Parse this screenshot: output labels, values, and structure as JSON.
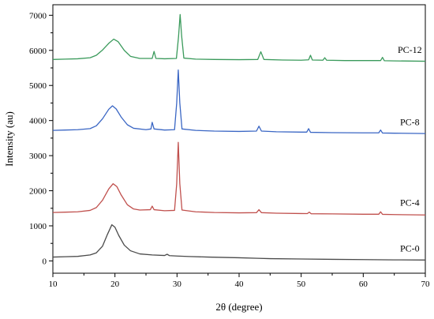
{
  "chart_data": {
    "type": "line",
    "xlabel": "2θ (degree)",
    "ylabel": "Intensity (au)",
    "xlim": [
      10,
      70
    ],
    "ylim": [
      -350,
      7300
    ],
    "xticks": [
      10,
      20,
      30,
      40,
      50,
      60,
      70
    ],
    "yticks": [
      0,
      1000,
      2000,
      3000,
      4000,
      5000,
      6000,
      7000
    ],
    "grid": false,
    "legend": "none",
    "series": [
      {
        "name": "PC-0",
        "color": "#4a4a4a",
        "points": [
          [
            10,
            110
          ],
          [
            12,
            120
          ],
          [
            14,
            130
          ],
          [
            16,
            170
          ],
          [
            17,
            230
          ],
          [
            18,
            420
          ],
          [
            18.8,
            760
          ],
          [
            19.5,
            1030
          ],
          [
            20,
            960
          ],
          [
            20.6,
            730
          ],
          [
            21.5,
            450
          ],
          [
            22.5,
            290
          ],
          [
            24,
            200
          ],
          [
            26,
            170
          ],
          [
            28,
            155
          ],
          [
            28.4,
            190
          ],
          [
            28.8,
            150
          ],
          [
            30,
            140
          ],
          [
            32,
            125
          ],
          [
            35,
            110
          ],
          [
            40,
            90
          ],
          [
            43,
            75
          ],
          [
            45,
            65
          ],
          [
            50,
            55
          ],
          [
            55,
            45
          ],
          [
            60,
            38
          ],
          [
            65,
            30
          ],
          [
            70,
            25
          ]
        ]
      },
      {
        "name": "PC-4",
        "color": "#c0504d",
        "points": [
          [
            10,
            1380
          ],
          [
            12,
            1390
          ],
          [
            14,
            1400
          ],
          [
            16,
            1440
          ],
          [
            17,
            1520
          ],
          [
            18,
            1730
          ],
          [
            19,
            2050
          ],
          [
            19.7,
            2200
          ],
          [
            20.3,
            2120
          ],
          [
            21,
            1880
          ],
          [
            22,
            1600
          ],
          [
            23,
            1480
          ],
          [
            24,
            1450
          ],
          [
            25.7,
            1460
          ],
          [
            26,
            1560
          ],
          [
            26.3,
            1460
          ],
          [
            28,
            1430
          ],
          [
            29.6,
            1440
          ],
          [
            29.95,
            2200
          ],
          [
            30.2,
            3380
          ],
          [
            30.45,
            2200
          ],
          [
            30.8,
            1450
          ],
          [
            33,
            1400
          ],
          [
            36,
            1380
          ],
          [
            40,
            1370
          ],
          [
            42.8,
            1375
          ],
          [
            43.2,
            1460
          ],
          [
            43.6,
            1375
          ],
          [
            46,
            1360
          ],
          [
            50,
            1350
          ],
          [
            51,
            1348
          ],
          [
            51.3,
            1390
          ],
          [
            51.6,
            1345
          ],
          [
            55,
            1340
          ],
          [
            60,
            1330
          ],
          [
            62.5,
            1330
          ],
          [
            62.8,
            1400
          ],
          [
            63.1,
            1328
          ],
          [
            65,
            1320
          ],
          [
            70,
            1310
          ]
        ]
      },
      {
        "name": "PC-8",
        "color": "#3a66c4",
        "points": [
          [
            10,
            3720
          ],
          [
            12,
            3730
          ],
          [
            14,
            3740
          ],
          [
            16,
            3770
          ],
          [
            17,
            3850
          ],
          [
            18,
            4050
          ],
          [
            19,
            4320
          ],
          [
            19.6,
            4420
          ],
          [
            20.2,
            4330
          ],
          [
            21,
            4100
          ],
          [
            22,
            3880
          ],
          [
            23,
            3780
          ],
          [
            25,
            3740
          ],
          [
            25.8,
            3760
          ],
          [
            26,
            3950
          ],
          [
            26.3,
            3760
          ],
          [
            28,
            3730
          ],
          [
            29.6,
            3740
          ],
          [
            29.95,
            4500
          ],
          [
            30.2,
            5440
          ],
          [
            30.45,
            4500
          ],
          [
            30.8,
            3760
          ],
          [
            33,
            3720
          ],
          [
            36,
            3700
          ],
          [
            40,
            3690
          ],
          [
            42.8,
            3700
          ],
          [
            43.2,
            3840
          ],
          [
            43.6,
            3700
          ],
          [
            46,
            3680
          ],
          [
            50,
            3670
          ],
          [
            50.9,
            3670
          ],
          [
            51.2,
            3770
          ],
          [
            51.5,
            3665
          ],
          [
            55,
            3655
          ],
          [
            60,
            3650
          ],
          [
            62.5,
            3650
          ],
          [
            62.8,
            3730
          ],
          [
            63.1,
            3645
          ],
          [
            65,
            3640
          ],
          [
            70,
            3630
          ]
        ]
      },
      {
        "name": "PC-12",
        "color": "#3a9a5b",
        "points": [
          [
            10,
            5740
          ],
          [
            12,
            5750
          ],
          [
            14,
            5760
          ],
          [
            16,
            5790
          ],
          [
            17,
            5860
          ],
          [
            18,
            6010
          ],
          [
            19,
            6200
          ],
          [
            19.8,
            6320
          ],
          [
            20.5,
            6250
          ],
          [
            21.5,
            6000
          ],
          [
            22.5,
            5830
          ],
          [
            24,
            5770
          ],
          [
            26,
            5770
          ],
          [
            26.3,
            5970
          ],
          [
            26.6,
            5770
          ],
          [
            28,
            5760
          ],
          [
            29.9,
            5770
          ],
          [
            30.25,
            6400
          ],
          [
            30.5,
            7020
          ],
          [
            30.75,
            6400
          ],
          [
            31.1,
            5780
          ],
          [
            33,
            5750
          ],
          [
            36,
            5740
          ],
          [
            40,
            5735
          ],
          [
            43,
            5740
          ],
          [
            43.5,
            5960
          ],
          [
            44,
            5740
          ],
          [
            47,
            5725
          ],
          [
            50,
            5720
          ],
          [
            51.2,
            5730
          ],
          [
            51.5,
            5860
          ],
          [
            51.8,
            5725
          ],
          [
            53.5,
            5720
          ],
          [
            53.8,
            5790
          ],
          [
            54.1,
            5720
          ],
          [
            57,
            5710
          ],
          [
            60,
            5710
          ],
          [
            62.8,
            5710
          ],
          [
            63.1,
            5800
          ],
          [
            63.4,
            5705
          ],
          [
            65,
            5700
          ],
          [
            70,
            5690
          ]
        ]
      }
    ],
    "annotations": [
      {
        "text": "PC-12",
        "x": 67.5,
        "y": 5930
      },
      {
        "text": "PC-8",
        "x": 67.5,
        "y": 3870
      },
      {
        "text": "PC-4",
        "x": 67.5,
        "y": 1570
      },
      {
        "text": "PC-0",
        "x": 67.5,
        "y": 270
      }
    ]
  }
}
